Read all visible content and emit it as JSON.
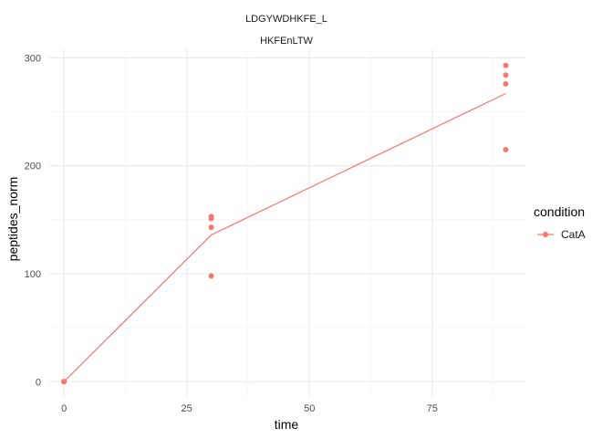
{
  "chart_data": {
    "type": "line",
    "title": "LDGYWDHKFE_L",
    "subtitle": "HKFEnLTW",
    "xlabel": "time",
    "ylabel": "peptides_norm",
    "xlim": [
      -3,
      94
    ],
    "ylim": [
      -15,
      308
    ],
    "x_ticks": [
      0,
      25,
      50,
      75
    ],
    "x_tick_labels": [
      "0",
      "25",
      "50",
      "75"
    ],
    "y_ticks": [
      0,
      100,
      200,
      300
    ],
    "y_tick_labels": [
      "0",
      "100",
      "200",
      "300"
    ],
    "grid": true,
    "legend": {
      "title": "condition",
      "position": "right",
      "entries": [
        "CatA"
      ]
    },
    "series": [
      {
        "name": "CatA",
        "color": "#F8766D",
        "points": [
          {
            "x": 0,
            "y": 0
          },
          {
            "x": 0,
            "y": 0
          },
          {
            "x": 0,
            "y": 0
          },
          {
            "x": 30,
            "y": 153
          },
          {
            "x": 30,
            "y": 151
          },
          {
            "x": 30,
            "y": 143
          },
          {
            "x": 30,
            "y": 98
          },
          {
            "x": 90,
            "y": 293
          },
          {
            "x": 90,
            "y": 284
          },
          {
            "x": 90,
            "y": 276
          },
          {
            "x": 90,
            "y": 215
          }
        ],
        "line": [
          {
            "x": 0,
            "y": 0
          },
          {
            "x": 30,
            "y": 136
          },
          {
            "x": 90,
            "y": 267
          }
        ]
      }
    ]
  }
}
